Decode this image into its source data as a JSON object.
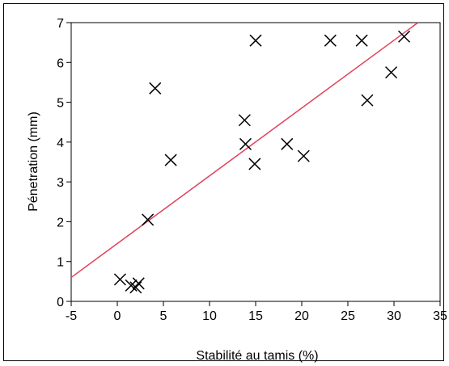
{
  "chart_data": {
    "type": "scatter",
    "title": "",
    "xlabel": "Stabilité au tamis (%)",
    "ylabel": "Pénetration (mm)",
    "xlim": [
      -5,
      35
    ],
    "ylim": [
      0,
      7
    ],
    "xticks": [
      -5,
      0,
      5,
      10,
      15,
      20,
      25,
      30,
      35
    ],
    "yticks": [
      0,
      1,
      2,
      3,
      4,
      5,
      6,
      7
    ],
    "grid": false,
    "marker": "x",
    "colors": {
      "points": "#000000",
      "fit_line": "#e0405a"
    },
    "series": [
      {
        "points": [
          {
            "x": 0.3,
            "y": 0.55
          },
          {
            "x": 1.5,
            "y": 0.4
          },
          {
            "x": 2.0,
            "y": 0.35
          },
          {
            "x": 2.3,
            "y": 0.45
          },
          {
            "x": 3.3,
            "y": 2.05
          },
          {
            "x": 4.1,
            "y": 5.35
          },
          {
            "x": 5.8,
            "y": 3.55
          },
          {
            "x": 13.8,
            "y": 4.55
          },
          {
            "x": 13.9,
            "y": 3.95
          },
          {
            "x": 14.9,
            "y": 3.45
          },
          {
            "x": 15.0,
            "y": 6.55
          },
          {
            "x": 18.4,
            "y": 3.95
          },
          {
            "x": 20.2,
            "y": 3.65
          },
          {
            "x": 23.1,
            "y": 6.55
          },
          {
            "x": 26.5,
            "y": 6.55
          },
          {
            "x": 27.1,
            "y": 5.05
          },
          {
            "x": 29.7,
            "y": 5.75
          },
          {
            "x": 31.1,
            "y": 6.65
          }
        ]
      }
    ],
    "fit_line": {
      "x": [
        -5,
        32.6
      ],
      "y": [
        0.6,
        7.0
      ]
    }
  }
}
